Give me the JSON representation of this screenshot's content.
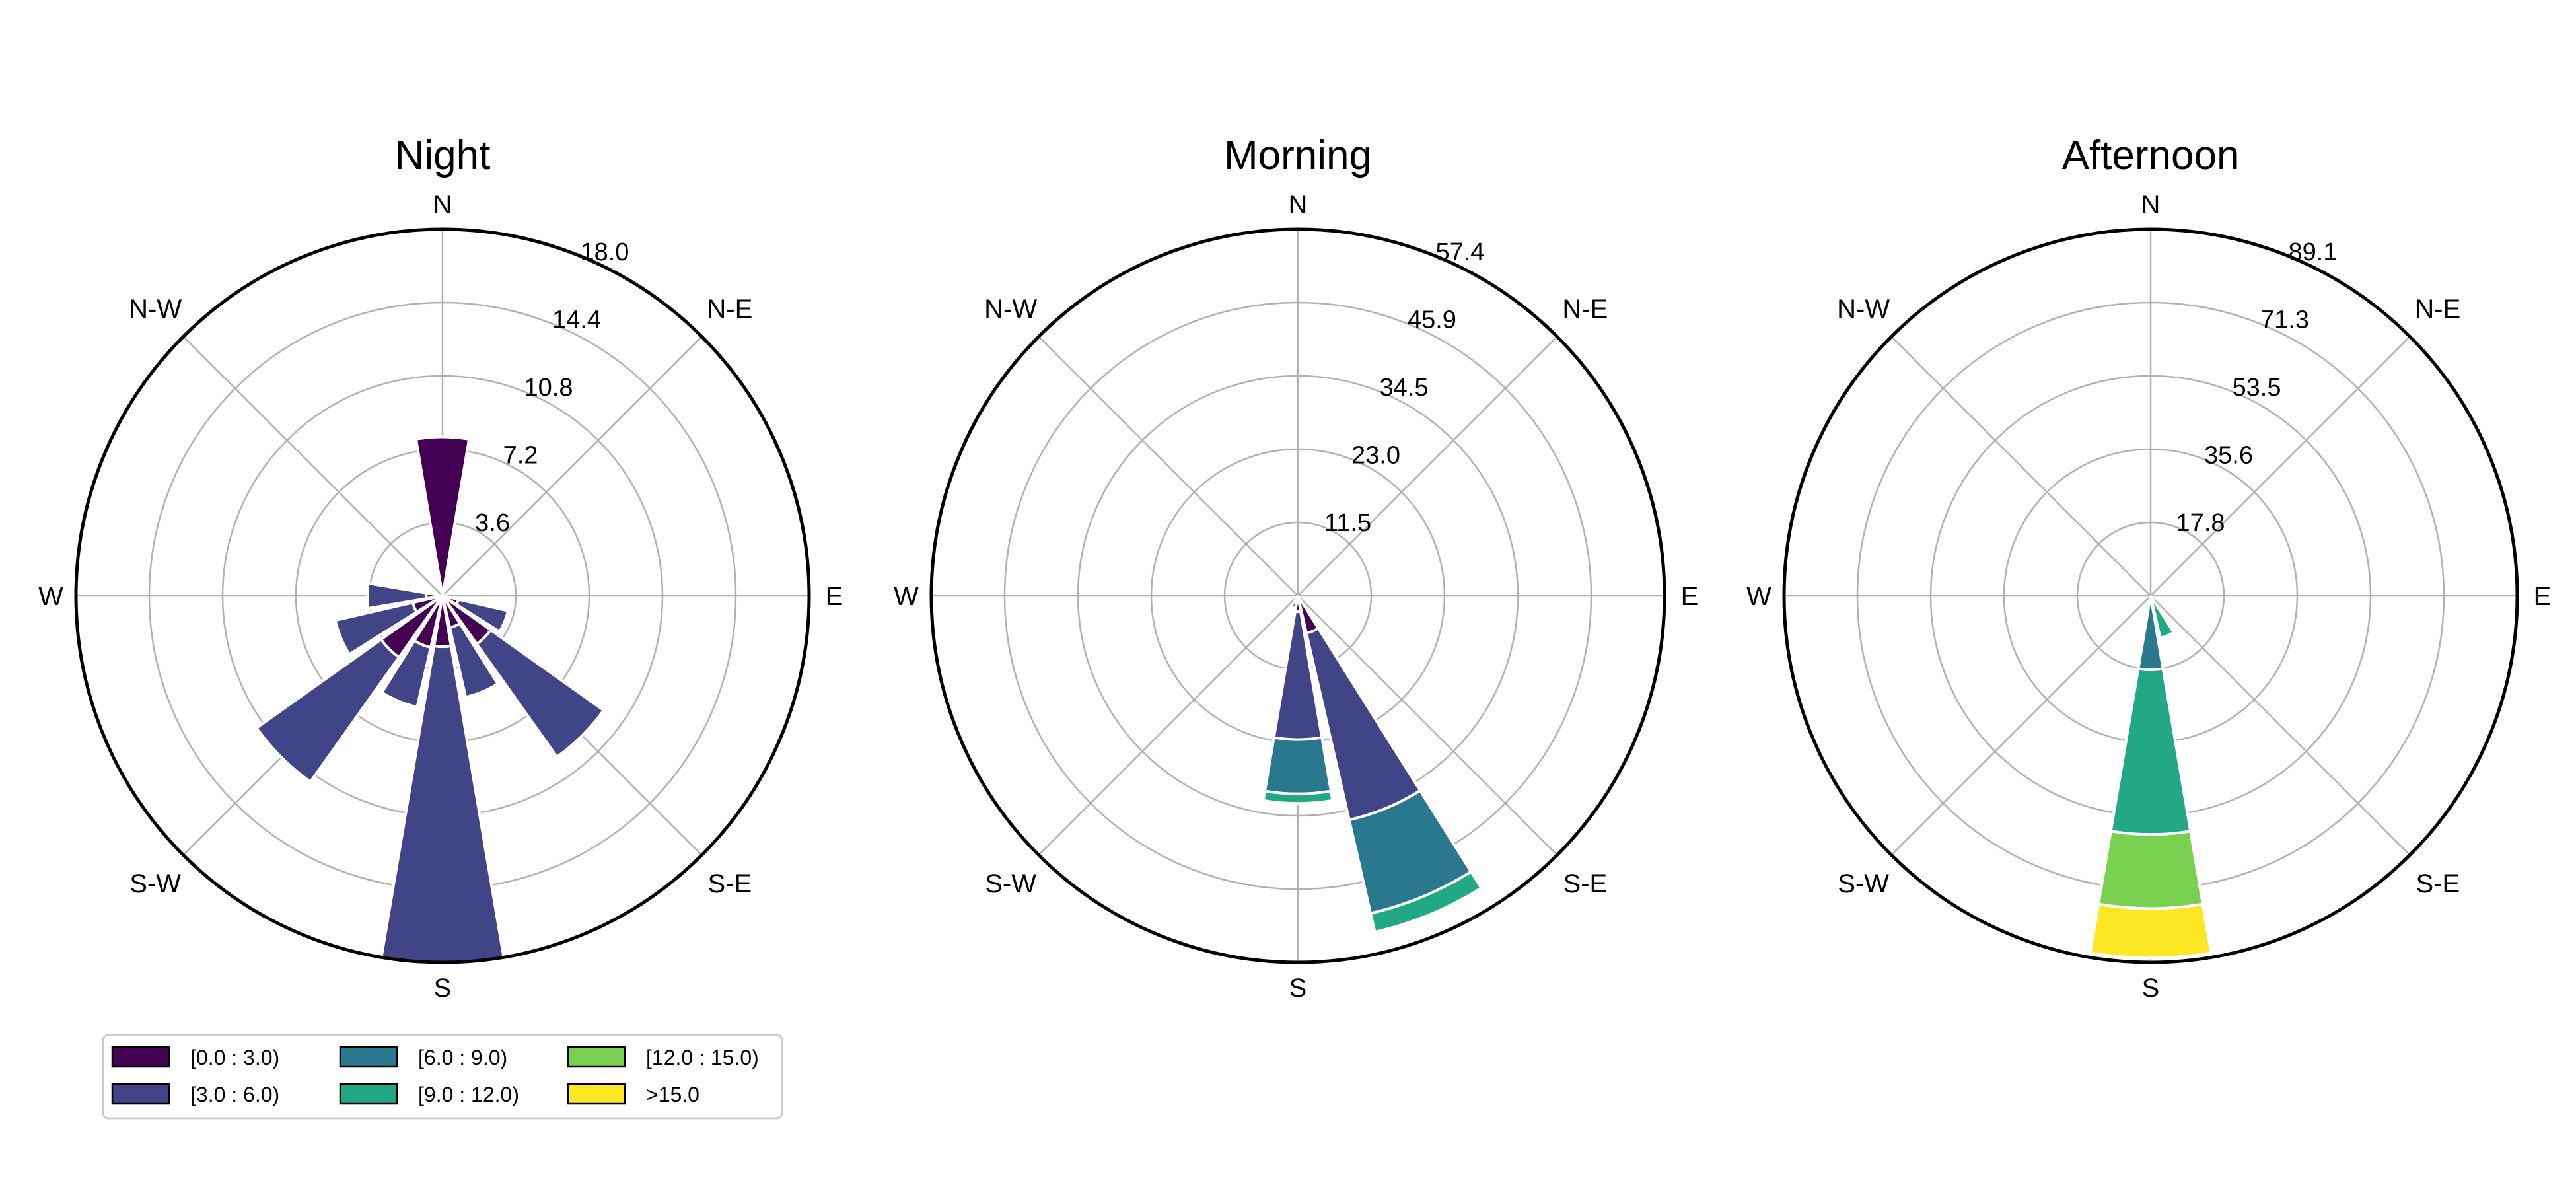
{
  "chart_data": [
    {
      "type": "windrose",
      "title": "Night",
      "rmax": 18.0,
      "radial_ticks": [
        "3.6",
        "7.2",
        "10.8",
        "14.4",
        "18.0"
      ],
      "sectors": [
        {
          "direction_deg": 0,
          "stacks": [
            7.8,
            0,
            0,
            0,
            0,
            0
          ]
        },
        {
          "direction_deg": 112.5,
          "stacks": [
            0.8,
            2.5,
            0,
            0,
            0,
            0
          ]
        },
        {
          "direction_deg": 135,
          "stacks": [
            2.9,
            6.8,
            0,
            0,
            0,
            0
          ]
        },
        {
          "direction_deg": 157.5,
          "stacks": [
            1.6,
            3.5,
            0,
            0,
            0,
            0
          ]
        },
        {
          "direction_deg": 180,
          "stacks": [
            2.5,
            15.5,
            0,
            0,
            0,
            0
          ]
        },
        {
          "direction_deg": 202.5,
          "stacks": [
            2.6,
            3.0,
            0,
            0,
            0,
            0
          ]
        },
        {
          "direction_deg": 225,
          "stacks": [
            3.7,
            7.5,
            0,
            0,
            0,
            0
          ]
        },
        {
          "direction_deg": 247.5,
          "stacks": [
            1.5,
            3.9,
            0,
            0,
            0,
            0
          ]
        },
        {
          "direction_deg": 270,
          "stacks": [
            0.8,
            2.9,
            0,
            0,
            0,
            0
          ]
        }
      ]
    },
    {
      "type": "windrose",
      "title": "Morning",
      "rmax": 57.4,
      "radial_ticks": [
        "11.5",
        "23.0",
        "34.5",
        "45.9",
        "57.4"
      ],
      "sectors": [
        {
          "direction_deg": 157.5,
          "stacks": [
            6.0,
            30.0,
            15.0,
            3.0,
            0,
            0
          ]
        },
        {
          "direction_deg": 180,
          "stacks": [
            2.5,
            20.0,
            8.5,
            1.5,
            0,
            0
          ]
        },
        {
          "direction_deg": 202.5,
          "stacks": [
            2.0,
            0,
            0,
            0,
            0,
            0
          ]
        }
      ]
    },
    {
      "type": "windrose",
      "title": "Afternoon",
      "rmax": 89.1,
      "radial_ticks": [
        "17.8",
        "35.6",
        "53.5",
        "71.3",
        "89.1"
      ],
      "sectors": [
        {
          "direction_deg": 157.5,
          "stacks": [
            0,
            0,
            0,
            10.5,
            0,
            0
          ]
        },
        {
          "direction_deg": 180,
          "stacks": [
            0,
            0,
            18.0,
            40.0,
            18.0,
            12.0
          ]
        }
      ]
    }
  ],
  "direction_labels": [
    "N",
    "N-E",
    "E",
    "S-E",
    "S",
    "S-W",
    "W",
    "N-W"
  ],
  "legend": [
    {
      "label": "[0.0 : 3.0)",
      "color": "#440154"
    },
    {
      "label": "[3.0 : 6.0)",
      "color": "#414487"
    },
    {
      "label": "[6.0 : 9.0)",
      "color": "#2a788e"
    },
    {
      "label": "[9.0 : 12.0)",
      "color": "#22a884"
    },
    {
      "label": "[12.0 : 15.0)",
      "color": "#7ad151"
    },
    {
      "label": ">15.0",
      "color": "#fde725"
    }
  ]
}
